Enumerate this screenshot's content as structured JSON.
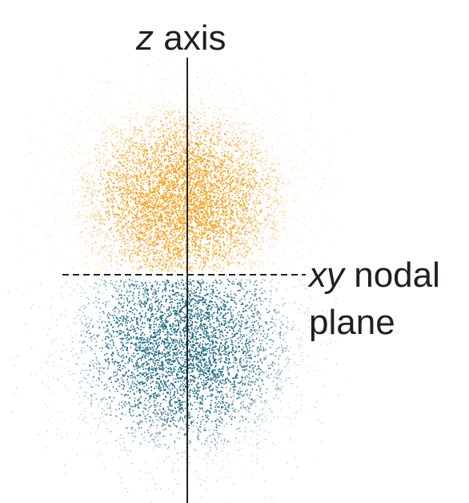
{
  "labels": {
    "z_axis": {
      "var": "z",
      "word": "axis"
    },
    "nodal": {
      "var": "xy",
      "word": "nodal"
    },
    "plane": "plane"
  },
  "colors": {
    "upper_lobe": "#f5a01f",
    "lower_lobe": "#1f6b86",
    "axis_line": "#231f20",
    "text": "#231f20"
  }
}
